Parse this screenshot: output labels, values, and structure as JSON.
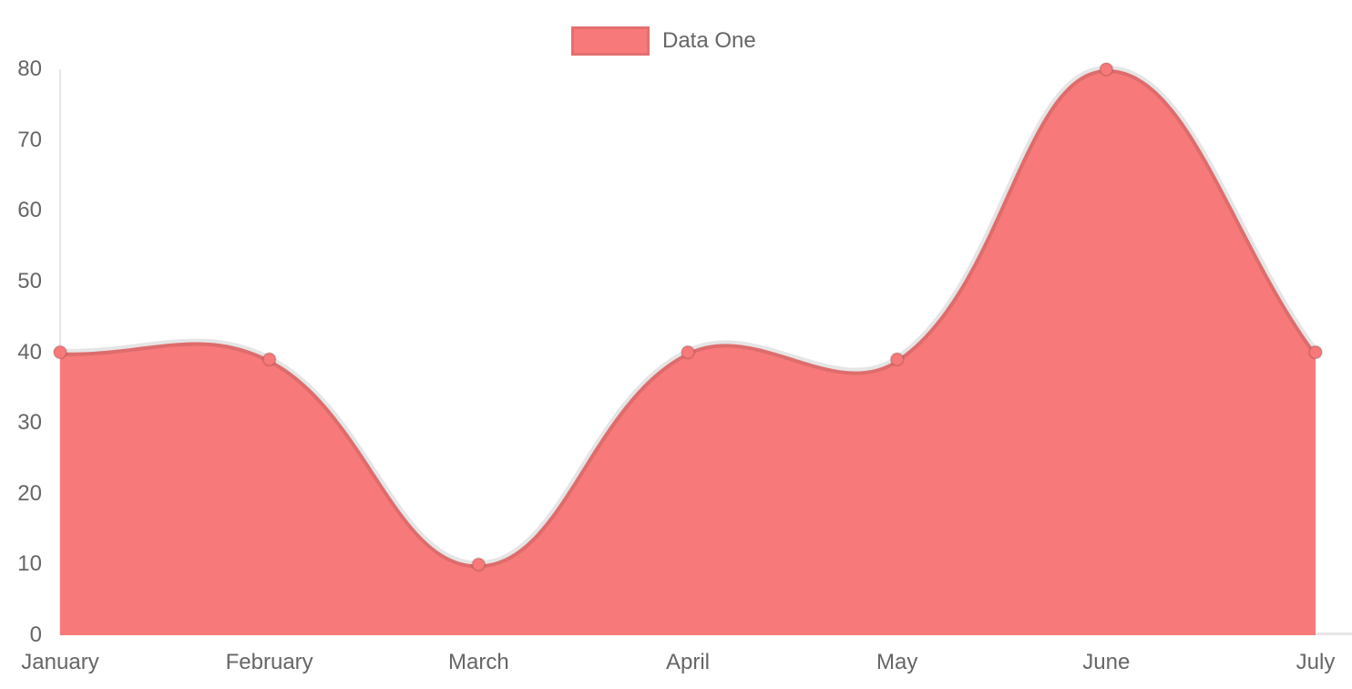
{
  "chart_data": {
    "type": "area",
    "categories": [
      "January",
      "February",
      "March",
      "April",
      "May",
      "June",
      "July"
    ],
    "series": [
      {
        "name": "Data One",
        "values": [
          40,
          39,
          10,
          40,
          39,
          80,
          40
        ]
      }
    ],
    "ylim": [
      0,
      80
    ],
    "y_ticks": [
      0,
      10,
      20,
      30,
      40,
      50,
      60,
      70,
      80
    ],
    "grid": false,
    "legend_position": "top",
    "line_tension": 0.4,
    "colors": {
      "fill": "#f87979",
      "line_border": "rgba(0,0,0,0.1)",
      "point_fill": "#f87979",
      "point_border": "rgba(0,0,0,0.12)",
      "axis_line": "#e6e6e6",
      "tick_text": "#666666",
      "background": "#ffffff"
    }
  },
  "legend": {
    "items": [
      {
        "label": "Data One",
        "swatch_color": "#f87979"
      }
    ]
  }
}
